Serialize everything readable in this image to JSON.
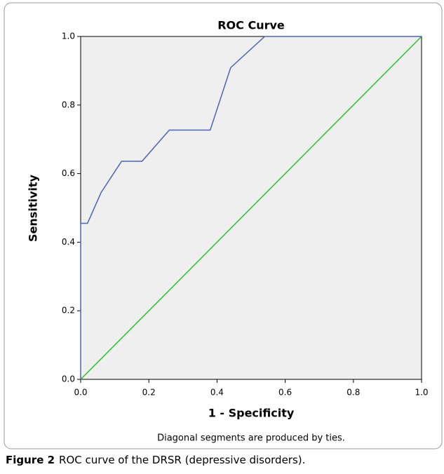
{
  "chart_data": {
    "type": "line",
    "title": "ROC Curve",
    "xlabel": "1 - Specificity",
    "ylabel": "Sensitivity",
    "note": "Diagonal segments are produced by ties.",
    "series": [
      {
        "color": "#4a64b8",
        "x": [
          0,
          0,
          0.02,
          0.06,
          0.12,
          0.18,
          0.26,
          0.38,
          0.44,
          0.54,
          1
        ],
        "values": [
          0,
          0.455,
          0.455,
          0.545,
          0.636,
          0.636,
          0.727,
          0.727,
          0.909,
          1,
          1
        ]
      },
      {
        "color": "#2ec02e",
        "x": [
          0,
          1
        ],
        "values": [
          0,
          1
        ]
      }
    ],
    "xlim": [
      0,
      1
    ],
    "ylim": [
      0,
      1
    ],
    "xticks": [
      {
        "value": 0,
        "label": "0.0"
      },
      0.2,
      0.4,
      0.6,
      0.8,
      {
        "value": 1,
        "label": "1.0"
      }
    ],
    "yticks": [
      {
        "value": 0,
        "label": "0.0"
      },
      0.2,
      0.4,
      0.6,
      0.8,
      {
        "value": 1,
        "label": "1.0"
      }
    ],
    "background": "#efefef"
  },
  "caption": {
    "label": "Figure 2",
    "text": "ROC curve of the DRSR (depressive disorders)."
  }
}
